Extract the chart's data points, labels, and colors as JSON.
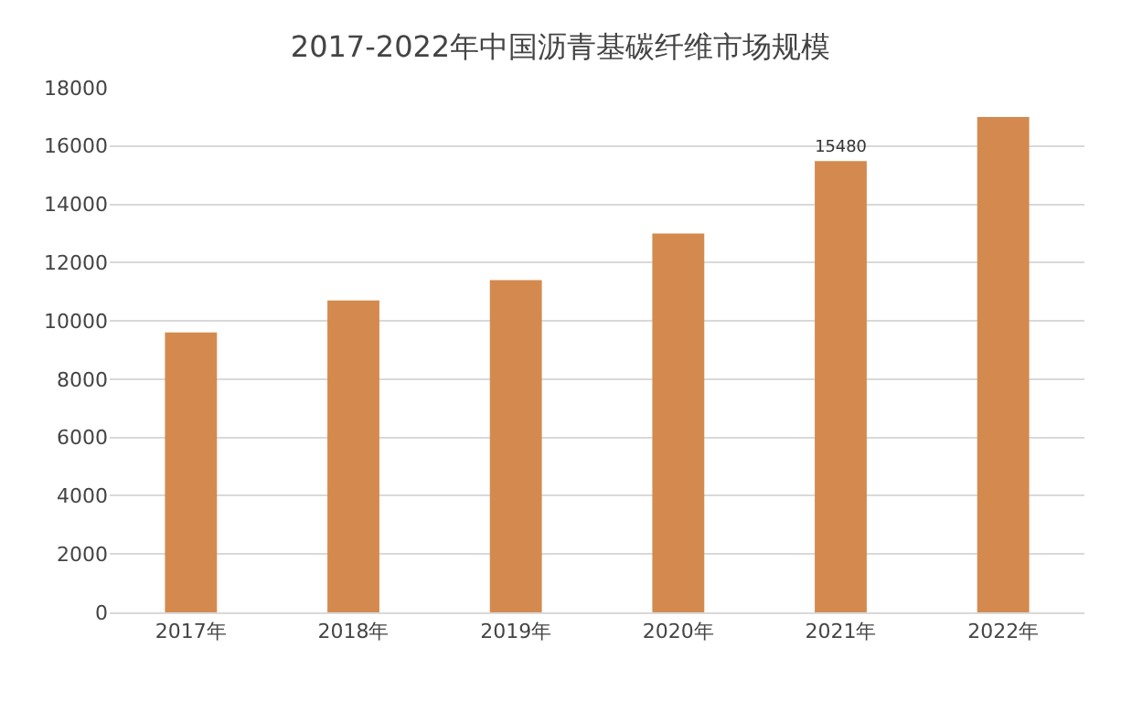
{
  "chart_data": {
    "type": "bar",
    "title": "2017-2022年中国沥青基碳纤维市场规模",
    "categories": [
      "2017年",
      "2018年",
      "2019年",
      "2020年",
      "2021年",
      "2022年"
    ],
    "values": [
      9600,
      10700,
      11400,
      13000,
      15480,
      17000
    ],
    "value_labels": [
      null,
      null,
      null,
      null,
      "15480",
      null
    ],
    "color": "#d48a4e",
    "ylim": [
      0,
      18000
    ],
    "yticks": [
      0,
      2000,
      4000,
      6000,
      8000,
      10000,
      12000,
      14000,
      16000,
      18000
    ],
    "grid": "y"
  }
}
